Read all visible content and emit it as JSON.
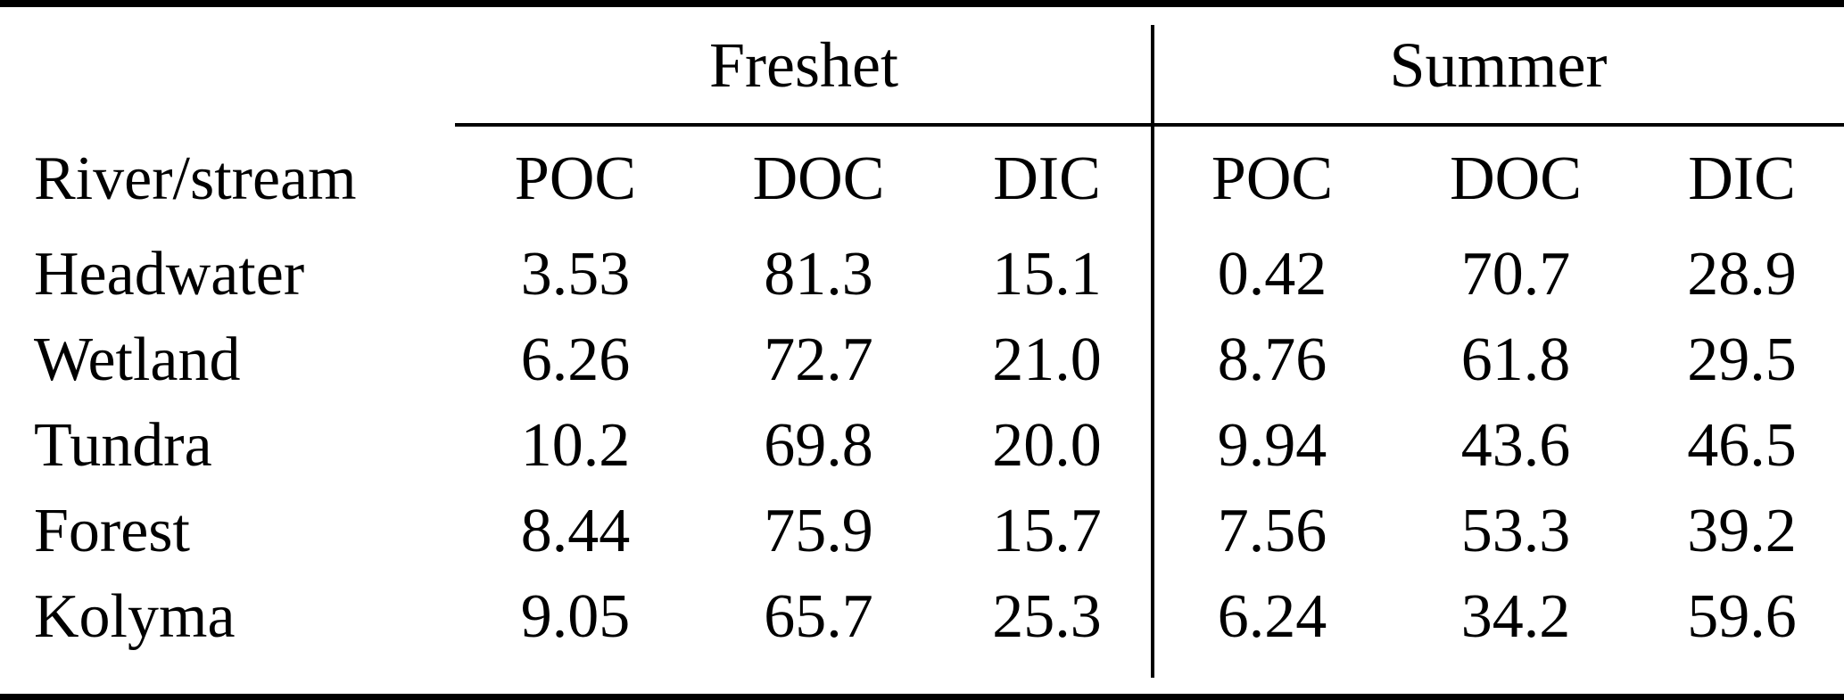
{
  "table": {
    "row_header_label": "River/stream",
    "group_headers": {
      "freshet": "Freshet",
      "summer": "Summer"
    },
    "sub_headers": {
      "freshet_poc": "POC",
      "freshet_doc": "DOC",
      "freshet_dic": "DIC",
      "summer_poc": "POC",
      "summer_doc": "DOC",
      "summer_dic": "DIC"
    },
    "rows": [
      {
        "name": "Headwater",
        "values": [
          "3.53",
          "81.3",
          "15.1",
          "0.42",
          "70.7",
          "28.9"
        ]
      },
      {
        "name": "Wetland",
        "values": [
          "6.26",
          "72.7",
          "21.0",
          "8.76",
          "61.8",
          "29.5"
        ]
      },
      {
        "name": "Tundra",
        "values": [
          "10.2",
          "69.8",
          "20.0",
          "9.94",
          "43.6",
          "46.5"
        ]
      },
      {
        "name": "Forest",
        "values": [
          "8.44",
          "75.9",
          "15.7",
          "7.56",
          "53.3",
          "39.2"
        ]
      },
      {
        "name": "Kolyma",
        "values": [
          "9.05",
          "65.7",
          "25.3",
          "6.24",
          "34.2",
          "59.6"
        ]
      }
    ],
    "colors": {
      "text": "#000000",
      "background": "#ffffff",
      "rules": "#000000"
    }
  },
  "chart_data": {
    "type": "table",
    "row_header": "River/stream",
    "column_groups": [
      "Freshet",
      "Summer"
    ],
    "columns": [
      "Freshet POC",
      "Freshet DOC",
      "Freshet DIC",
      "Summer POC",
      "Summer DOC",
      "Summer DIC"
    ],
    "rows": [
      "Headwater",
      "Wetland",
      "Tundra",
      "Forest",
      "Kolyma"
    ],
    "values": [
      [
        3.53,
        81.3,
        15.1,
        0.42,
        70.7,
        28.9
      ],
      [
        6.26,
        72.7,
        21.0,
        8.76,
        61.8,
        29.5
      ],
      [
        10.2,
        69.8,
        20.0,
        9.94,
        43.6,
        46.5
      ],
      [
        8.44,
        75.9,
        15.7,
        7.56,
        53.3,
        39.2
      ],
      [
        9.05,
        65.7,
        25.3,
        6.24,
        34.2,
        59.6
      ]
    ]
  }
}
